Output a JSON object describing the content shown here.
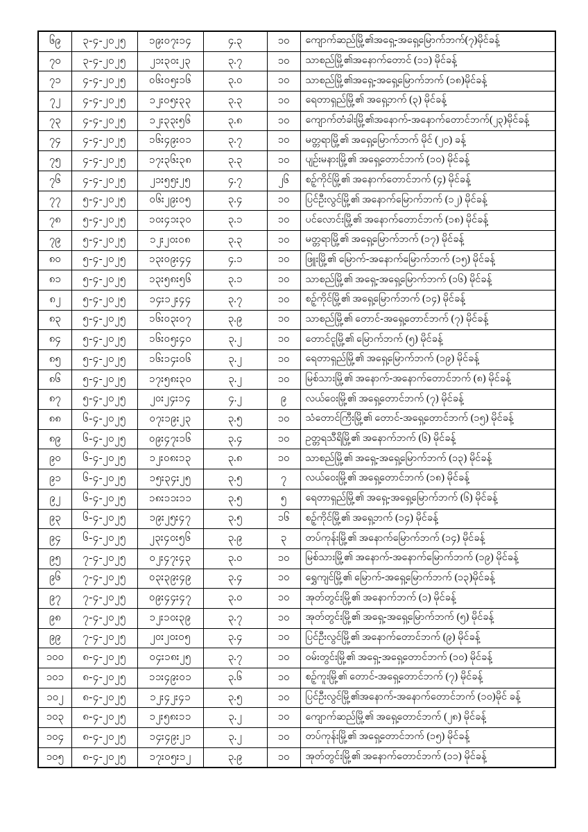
{
  "page": {
    "background_color": "#ffffff",
    "text_color": "#000000",
    "border_color": "#000000"
  },
  "table": {
    "column_keys": [
      "no",
      "date",
      "time",
      "magnitude",
      "depth",
      "location"
    ],
    "rows": [
      {
        "no": "၆၉",
        "date": "၃-၄-၂၀၂၅",
        "time": "၁၉း၀၇း၁၄",
        "magnitude": "၄.၃",
        "depth": "၁၀",
        "location": "ကျောက်ဆည်မြို့၏အရှေ့-အရှေ့မြောက်ဘက်(၇)မိုင်ခန့်"
      },
      {
        "no": "၇၀",
        "date": "၃-၄-၂၀၂၅",
        "time": "၂၁း၃၀း၂၃",
        "magnitude": "၃.၇",
        "depth": "၁၀",
        "location": "သာစည်မြို့၏အနောက်တောင် (၁၁) မိုင်ခန့်"
      },
      {
        "no": "၇၁",
        "date": "၄-၄-၂၀၂၅",
        "time": "၀၆း၀၅း၁၆",
        "magnitude": "၃.၀",
        "depth": "၁၀",
        "location": "သာစည်မြို့၏အရှေ့-အရှေ့မြောက်ဘက် (၁၈)မိုင်ခန့်"
      },
      {
        "no": "၇၂",
        "date": "၄-၄-၂၀၂၅",
        "time": "၁၂း၀၅း၃၃",
        "magnitude": "၃.၃",
        "depth": "၁၀",
        "location": "ရေတာရှည်မြို့၏ အရှေ့ဘက် (၃) မိုင်ခန့်"
      },
      {
        "no": "၇၃",
        "date": "၄-၄-၂၀၂၅",
        "time": "၁၂း၃၃း၅၆",
        "magnitude": "၃.၈",
        "depth": "၁၀",
        "location": "ကျောက်တံခါးမြို့၏အနောက်-အနောက်တောင်ဘက်(၂၃)မိုင်ခန့်"
      },
      {
        "no": "၇၄",
        "date": "၄-၄-၂၀၂၅",
        "time": "၁၆း၄၉း၀၁",
        "magnitude": "၃.၇",
        "depth": "၁၀",
        "location": "မတ္တရာမြို့၏ အရှေ့မြောက်ဘက် မိုင် (၂၀) ခန့်"
      },
      {
        "no": "၇၅",
        "date": "၄-၄-၂၀၂၅",
        "time": "၁၇း၃၆း၃၈",
        "magnitude": "၃.၃",
        "depth": "၁၀",
        "location": "ပျဉ်းမနားမြို့၏ အရှေ့တောင်ဘက် (၁၀) မိုင်ခန့်"
      },
      {
        "no": "၇၆",
        "date": "၄-၄-၂၀၂၅",
        "time": "၂၁း၅၅း၂၅",
        "magnitude": "၄.၇",
        "depth": "၂၆",
        "location": "စဉ့်ကိုင်မြို့၏ အနောက်တောင်ဘက် (၄) မိုင်ခန့်"
      },
      {
        "no": "၇၇",
        "date": "၅-၄-၂၀၂၅",
        "time": "၀၆း၂၉း၀၅",
        "magnitude": "၃.၄",
        "depth": "၁၀",
        "location": "ပြင်ဦးလွင်မြို့၏ အနောက်မြောက်ဘက် (၁၂) မိုင်ခန့်"
      },
      {
        "no": "၇၈",
        "date": "၅-၄-၂၀၂၅",
        "time": "၁၀း၄၁း၃၀",
        "magnitude": "၃.၁",
        "depth": "၁၀",
        "location": "ပင်လောင်းမြို့၏ အနောက်တောင်ဘက် (၁၈) မိုင်ခန့်"
      },
      {
        "no": "၇၉",
        "date": "၅-၄-၂၀၂၅",
        "time": "၁၂း၂၀း၀၈",
        "magnitude": "၃.၃",
        "depth": "၁၀",
        "location": "မတ္တရာမြို့၏ အရှေ့မြောက်ဘက် (၁၇) မိုင်ခန့်"
      },
      {
        "no": "၈၀",
        "date": "၅-၄-၂၀၂၅",
        "time": "၁၃း၀၉း၄၄",
        "magnitude": "၄.၁",
        "depth": "၁၀",
        "location": "ဖြူးမြို့၏ မြောက်-အနောက်မြောက်ဘက် (၁၅) မိုင်ခန့်"
      },
      {
        "no": "၈၁",
        "date": "၅-၄-၂၀၂၅",
        "time": "၁၃း၅၈း၅၆",
        "magnitude": "၃.၁",
        "depth": "၁၀",
        "location": "သာစည်မြို့၏ အရှေ့-အရှေ့မြောက်ဘက် (၁၆) မိုင်ခန့်"
      },
      {
        "no": "၈၂",
        "date": "၅-၄-၂၀၂၅",
        "time": "၁၄း၁၂း၄၄",
        "magnitude": "၃.၇",
        "depth": "၁၀",
        "location": "စဉ့်ကိုင်မြို့၏ အရှေ့မြောက်ဘက် (၁၄) မိုင်ခန့်"
      },
      {
        "no": "၈၃",
        "date": "၅-၄-၂၀၂၅",
        "time": "၁၆း၀၃း၀၇",
        "magnitude": "၃.၉",
        "depth": "၁၀",
        "location": "သာစည်မြို့၏ တောင်-အရှေ့တောင်ဘက် (၇) မိုင်ခန့်"
      },
      {
        "no": "၈၄",
        "date": "၅-၄-၂၀၂၅",
        "time": "၁၆း၀၅း၄၀",
        "magnitude": "၃.၂",
        "depth": "၁၀",
        "location": "တောင်ငူမြို့၏ မြောက်ဘက် (၅) မိုင်ခန့်"
      },
      {
        "no": "၈၅",
        "date": "၅-၄-၂၀၂၅",
        "time": "၁၆း၁၄း၀၆",
        "magnitude": "၃.၂",
        "depth": "၁၀",
        "location": "ရေတာရှည်မြို့၏ အရှေ့မြောက်ဘက် (၁၉) မိုင်ခန့်"
      },
      {
        "no": "၈၆",
        "date": "၅-၄-၂၀၂၅",
        "time": "၁၇း၅၈း၃၀",
        "magnitude": "၃.၂",
        "depth": "၁၀",
        "location": "မြစ်သားမြို့၏ အနောက်-အနောက်တောင်ဘက် (၈) မိုင်ခန့်"
      },
      {
        "no": "၈၇",
        "date": "၅-၄-၂၀၂၅",
        "time": "၂၀း၂၄း၁၄",
        "magnitude": "၄.၂",
        "depth": "၉",
        "location": "လယ်ဝေးမြို့၏ အရှေ့တောင်ဘက် (၇) မိုင်ခန့်"
      },
      {
        "no": "၈၈",
        "date": "၆-၄-၂၀၂၅",
        "time": "၀၇း၁၉း၂၃",
        "magnitude": "၃.၅",
        "depth": "၁၀",
        "location": "သံတောင်ကြီးမြို့၏ တောင်-အရှေ့တောင်ဘက် (၁၅) မိုင်ခန့်"
      },
      {
        "no": "၈၉",
        "date": "၆-၄-၂၀၂၅",
        "time": "၀၉း၄၇း၁၆",
        "magnitude": "၃.၄",
        "depth": "၁၀",
        "location": "ဥတ္တရသီရိမြို့၏ အနောက်ဘက် (၆) မိုင်ခန့်"
      },
      {
        "no": "၉၀",
        "date": "၆-၄-၂၀၂၅",
        "time": "၁၂း၀၈း၁၃",
        "magnitude": "၃.၈",
        "depth": "၁၀",
        "location": "သာစည်မြို့၏ အရှေ့-အရှေ့မြောက်ဘက် (၁၃) မိုင်ခန့်"
      },
      {
        "no": "၉၁",
        "date": "၆-၄-၂၀၂၅",
        "time": "၁၅း၃၄း၂၅",
        "magnitude": "၃.၅",
        "depth": "၇",
        "location": "လယ်ဝေးမြို့၏ အရှေ့တောင်ဘက် (၁၈) မိုင်ခန့်"
      },
      {
        "no": "၉၂",
        "date": "၆-၄-၂၀၂၅",
        "time": "၁၈း၁၁း၁၁",
        "magnitude": "၃.၅",
        "depth": "၅",
        "location": "ရေတာရှည်မြို့၏ အရှေ့-အရှေ့မြောက်ဘက် (၆) မိုင်ခန့်"
      },
      {
        "no": "၉၃",
        "date": "၆-၄-၂၀၂၅",
        "time": "၁၉း၂၅း၄၇",
        "magnitude": "၃.၅",
        "depth": "၁၆",
        "location": "စဉ့်ကိုင်မြို့၏ အရှေ့ဘက် (၁၄) မိုင်ခန့်"
      },
      {
        "no": "၉၄",
        "date": "၆-၄-၂၀၂၅",
        "time": "၂၃း၄၀း၅၆",
        "magnitude": "၃.၉",
        "depth": "၃",
        "location": "တပ်ကုန်းမြို့၏ အနောက်မြောက်ဘက် (၁၄) မိုင်ခန့်"
      },
      {
        "no": "၉၅",
        "date": "၇-၄-၂၀၂၅",
        "time": "၀၂း၄၇း၄၃",
        "magnitude": "၃.၀",
        "depth": "၁၀",
        "location": "မြစ်သားမြို့၏ အနောက်-အနောက်မြောက်ဘက် (၁၉) မိုင်ခန့်"
      },
      {
        "no": "၉၆",
        "date": "၇-၄-၂၀၂၅",
        "time": "၀၃း၃၉း၄၉",
        "magnitude": "၃.၄",
        "depth": "၁၀",
        "location": "ရွှေကျင်မြို့၏ မြောက်-အရှေ့မြောက်ဘက် (၁၃)မိုင်ခန့်"
      },
      {
        "no": "၉၇",
        "date": "၇-၄-၂၀၂၅",
        "time": "၀၉း၄၄း၄၇",
        "magnitude": "၃.၀",
        "depth": "၁၀",
        "location": "အုတ်တွင်းမြို့၏ အနောက်ဘက် (၁) မိုင်ခန့်"
      },
      {
        "no": "၉၈",
        "date": "၇-၄-၂၀၂၅",
        "time": "၁၂း၁၀း၃၉",
        "magnitude": "၃.၇",
        "depth": "၁၀",
        "location": "အုတ်တွင်းမြို့၏ အရှေ့-အရှေ့မြောက်ဘက် (၅) မိုင်ခန့်"
      },
      {
        "no": "၉၉",
        "date": "၇-၄-၂၀၂၅",
        "time": "၂၀း၂၀း၀၅",
        "magnitude": "၃.၄",
        "depth": "၁၀",
        "location": "ပြင်ဦးလွင်မြို့၏ အနောက်တောင်ဘက် (၉) မိုင်ခန့်"
      },
      {
        "no": "၁၀၀",
        "date": "၈-၄-၂၀၂၅",
        "time": "၀၄း၁၈း၂၅",
        "magnitude": "၃.၇",
        "depth": "၁၀",
        "location": "ဝမ်းတွင်းမြို့၏ အရှေ့-အရှေ့တောင်ဘက် (၁၀) မိုင်ခန့်"
      },
      {
        "no": "၁၀၁",
        "date": "၈-၄-၂၀၂၅",
        "time": "၁၁း၄၉း၀၁",
        "magnitude": "၃.၆",
        "depth": "၁၀",
        "location": "စဉ့်ကူးမြို့၏ တောင်-အရှေ့တောင်ဘက် (၇) မိုင်ခန့်"
      },
      {
        "no": "၁၀၂",
        "date": "၈-၄-၂၀၂၅",
        "time": "၁၂း၄၂း၄၁",
        "magnitude": "၃.၅",
        "depth": "၁၀",
        "location": "ပြင်ဦးလွင်မြို့၏အနောက်-အနောက်တောင်ဘက် (၁၀)မိုင် ခန့်"
      },
      {
        "no": "၁၀၃",
        "date": "၈-၄-၂၀၂၅",
        "time": "၁၂း၅၈း၁၁",
        "magnitude": "၃.၂",
        "depth": "၁၀",
        "location": "ကျောက်ဆည်မြို့၏ အရှေ့တောင်ဘက် (၂၈) မိုင်ခန့်"
      },
      {
        "no": "၁၀၄",
        "date": "၈-၄-၂၀၂၅",
        "time": "၁၄း၄၉း၂၁",
        "magnitude": "၃.၂",
        "depth": "၁၀",
        "location": "တပ်ကုန်းမြို့၏ အရှေ့တောင်ဘက် (၁၅) မိုင်ခန့်"
      },
      {
        "no": "၁၀၅",
        "date": "၈-၄-၂၀၂၅",
        "time": "၁၇း၀၅း၁၂",
        "magnitude": "၃.၉",
        "depth": "၁၀",
        "location": "အုတ်တွင်းမြို့၏ အနောက်တောင်ဘက် (၁၁) မိုင်ခန့်"
      }
    ]
  }
}
